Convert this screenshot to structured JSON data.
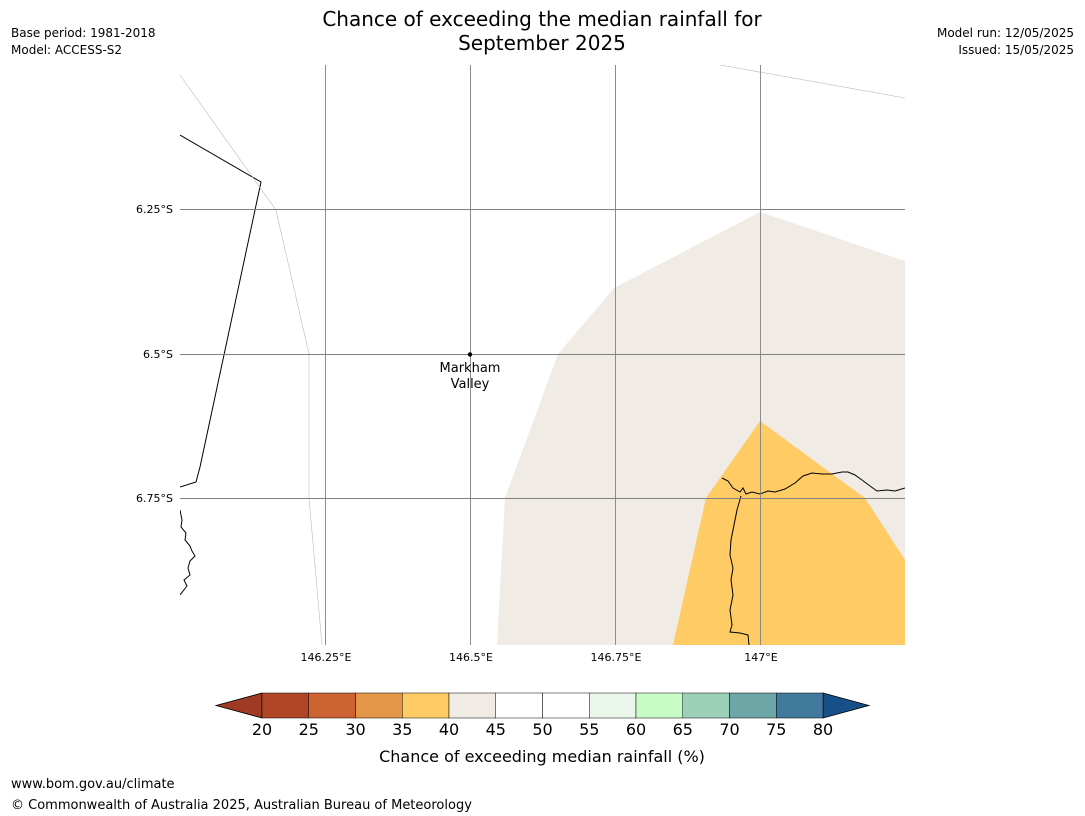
{
  "header": {
    "title_line1": "Chance of exceeding the median rainfall for",
    "title_line2": "September 2025",
    "base_period": "Base period: 1981-2018",
    "model": "Model: ACCESS-S2",
    "model_run": "Model run: 12/05/2025",
    "issued": "Issued: 15/05/2025"
  },
  "map": {
    "lat_labels": [
      "6.25°S",
      "6.5°S",
      "6.75°S"
    ],
    "lon_labels": [
      "146.25°E",
      "146.5°E",
      "146.75°E",
      "147°E"
    ],
    "place": {
      "name_line1": "Markham",
      "name_line2": "Valley"
    },
    "colors": {
      "band_40_45": "#f0ebe5",
      "band_35_40": "#fecb65",
      "gridline": "#808080"
    }
  },
  "colorbar": {
    "ticks": [
      "20",
      "25",
      "30",
      "35",
      "40",
      "45",
      "50",
      "55",
      "60",
      "65",
      "70",
      "75",
      "80"
    ],
    "label": "Chance of exceeding median rainfall (%)",
    "colors": [
      "#b14626",
      "#ce6332",
      "#e39548",
      "#fecb65",
      "#f0ebe5",
      "#ffffff",
      "#ffffff",
      "#eaf6e9",
      "#c7fcc7",
      "#9dd0b9",
      "#6ca6a6",
      "#41799c"
    ],
    "under_color": "#9e3b22",
    "over_color": "#174f89"
  },
  "footer": {
    "url": "www.bom.gov.au/climate",
    "copyright": "© Commonwealth of Australia 2025, Australian Bureau of Meteorology"
  }
}
